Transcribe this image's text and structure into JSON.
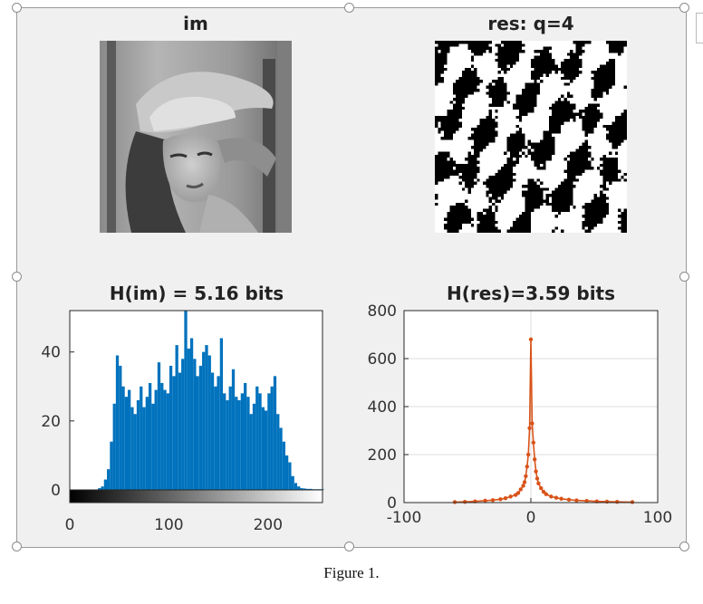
{
  "figure": {
    "caption": "Figure 1."
  },
  "colors": {
    "bar": "#0072bd",
    "line": "#d95319",
    "frame_bg": "#f0f0f0",
    "handle_border": "#8c8c8c"
  },
  "panels": {
    "im": {
      "title": "im",
      "image": "grayscale photo (Lena)"
    },
    "res": {
      "title": "res: q=4",
      "image": "binary black-and-white quantized residual image"
    }
  },
  "chart_data": [
    {
      "type": "bar",
      "title": "H(im) = 5.16 bits",
      "xlabel": "",
      "ylabel": "",
      "xlim": [
        0,
        255
      ],
      "ylim": [
        0,
        52
      ],
      "xticks": [
        0,
        100,
        200
      ],
      "yticks": [
        0,
        20,
        40
      ],
      "grid": false,
      "colorbar": "grayscale 0-255 below x axis",
      "x": [
        30,
        33,
        36,
        39,
        42,
        45,
        48,
        51,
        54,
        57,
        60,
        63,
        66,
        69,
        72,
        75,
        78,
        81,
        84,
        87,
        90,
        93,
        96,
        99,
        102,
        105,
        108,
        111,
        114,
        117,
        120,
        123,
        126,
        129,
        132,
        135,
        138,
        141,
        144,
        147,
        150,
        153,
        156,
        159,
        162,
        165,
        168,
        171,
        174,
        177,
        180,
        183,
        186,
        189,
        192,
        195,
        198,
        201,
        204,
        207,
        210,
        213,
        216,
        219,
        222,
        225,
        228,
        231,
        234,
        237,
        240,
        243,
        246,
        249,
        252,
        255
      ],
      "values": [
        0.5,
        1,
        3,
        6,
        14,
        25,
        39,
        36,
        30,
        27,
        29,
        24,
        22,
        26,
        30,
        24,
        27,
        31,
        25,
        29,
        37,
        31,
        29,
        28,
        36,
        33,
        42,
        34,
        38,
        52,
        41,
        44,
        38,
        33,
        36,
        40,
        42,
        39,
        34,
        30,
        33,
        44,
        28,
        26,
        30,
        35,
        27,
        26,
        28,
        31,
        27,
        22,
        25,
        30,
        28,
        24,
        23,
        28,
        30,
        33,
        22,
        18,
        14,
        10,
        8,
        4,
        2,
        1,
        0.5,
        0.4,
        0.3,
        0.3,
        0.2,
        0.2,
        0.2,
        0.2
      ]
    },
    {
      "type": "line",
      "title": "H(res)=3.59 bits",
      "xlabel": "",
      "ylabel": "",
      "xlim": [
        -100,
        100
      ],
      "ylim": [
        0,
        800
      ],
      "xticks": [
        -100,
        0,
        100
      ],
      "yticks": [
        0,
        200,
        400,
        600,
        800
      ],
      "grid": true,
      "series": [
        {
          "x": [
            -60,
            -52,
            -44,
            -36,
            -30,
            -24,
            -20,
            -16,
            -12,
            -10,
            -8,
            -6,
            -5,
            -4,
            -3,
            -2,
            -1,
            0,
            1,
            2,
            3,
            4,
            5,
            6,
            8,
            10,
            12,
            16,
            20,
            24,
            30,
            36,
            44,
            52,
            60,
            68,
            80
          ],
          "values": [
            2,
            3,
            5,
            8,
            10,
            14,
            18,
            25,
            32,
            40,
            55,
            70,
            85,
            110,
            150,
            200,
            310,
            680,
            330,
            250,
            180,
            130,
            100,
            80,
            60,
            45,
            35,
            25,
            20,
            16,
            12,
            9,
            7,
            5,
            4,
            3,
            2
          ]
        }
      ]
    }
  ]
}
